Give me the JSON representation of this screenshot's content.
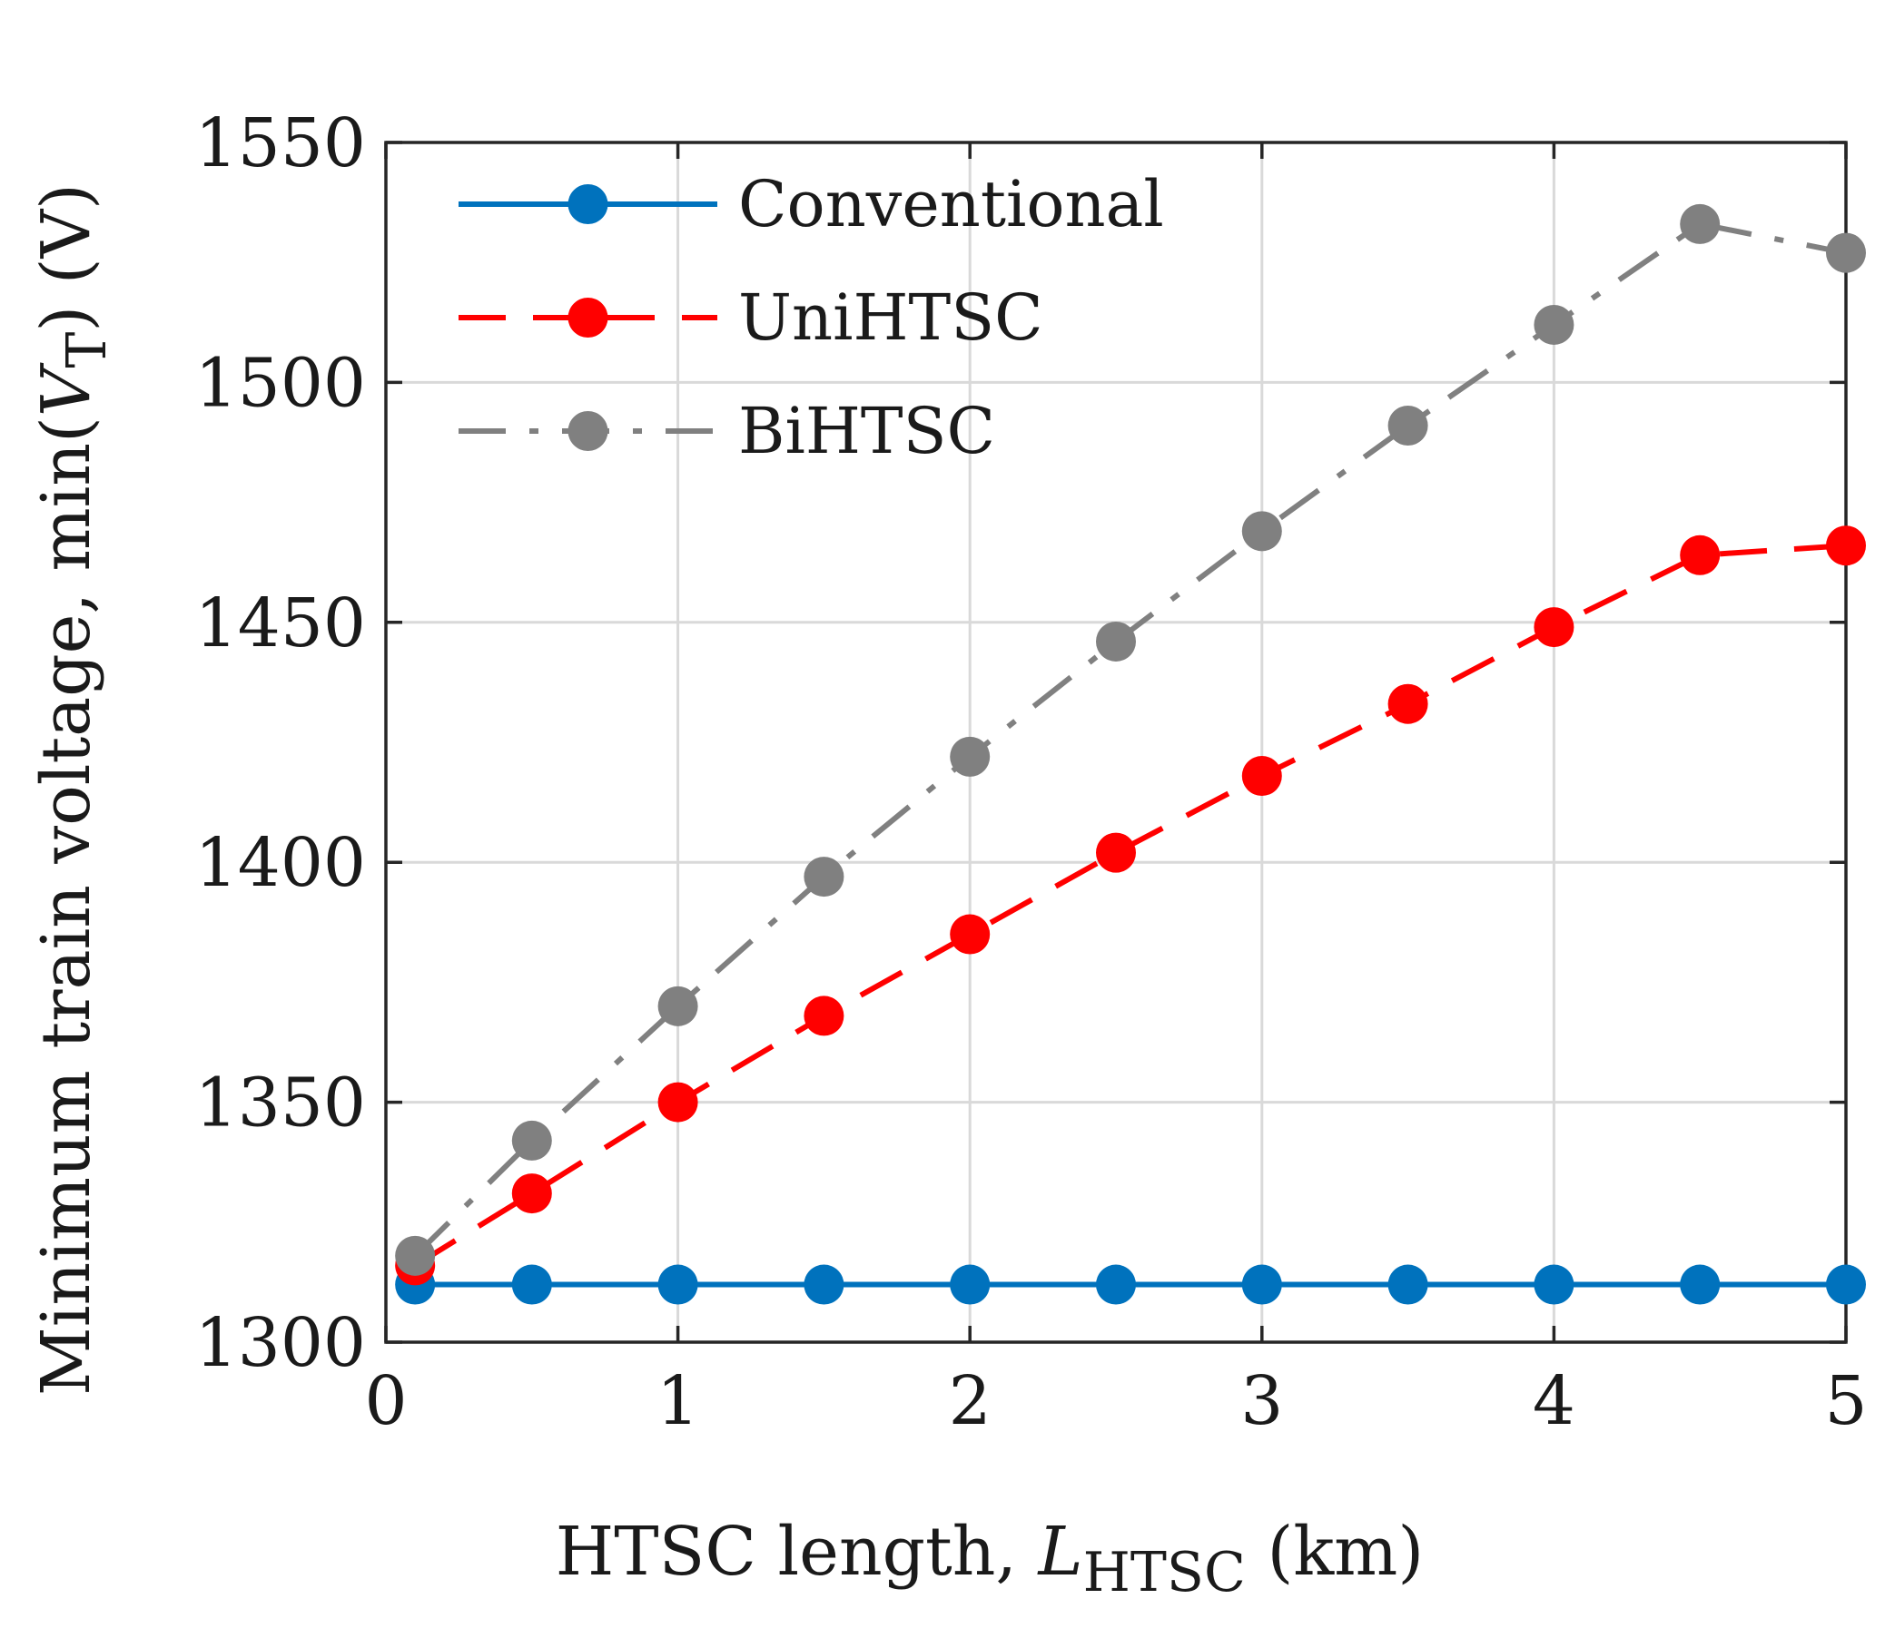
{
  "chart_data": {
    "type": "line",
    "title": "",
    "xlabel": {
      "main": "HTSC length, ",
      "var": "L",
      "sub": "HTSC",
      "unit": " (km)"
    },
    "ylabel": {
      "main": "Minimum train voltage, min(",
      "var": "V",
      "sub": "T",
      "unit": ") (V)"
    },
    "xlim": [
      0,
      5
    ],
    "ylim": [
      1300,
      1550
    ],
    "xticks": [
      0,
      1,
      2,
      3,
      4,
      5
    ],
    "xtick_labels": [
      "0",
      "1",
      "2",
      "3",
      "4",
      "5"
    ],
    "yticks": [
      1300,
      1350,
      1400,
      1450,
      1500,
      1550
    ],
    "ytick_labels": [
      "1300",
      "1350",
      "1400",
      "1450",
      "1500",
      "1550"
    ],
    "grid": true,
    "legend_position": "top-left",
    "x": [
      0.1,
      0.5,
      1,
      1.5,
      2,
      2.5,
      3,
      3.5,
      4,
      4.5,
      5
    ],
    "series": [
      {
        "name": "Conventional",
        "color": "#0072BD",
        "line_style": "solid",
        "values": [
          1312,
          1312,
          1312,
          1312,
          1312,
          1312,
          1312,
          1312,
          1312,
          1312,
          1312
        ]
      },
      {
        "name": "UniHTSC",
        "color": "#FF0000",
        "line_style": "dashed",
        "values": [
          1316,
          1331,
          1350,
          1368,
          1385,
          1402,
          1418,
          1433,
          1449,
          1464,
          1466
        ]
      },
      {
        "name": "BiHTSC",
        "color": "#808080",
        "line_style": "dash-dot",
        "values": [
          1318,
          1342,
          1370,
          1397,
          1422,
          1446,
          1469,
          1491,
          1512,
          1533,
          1527
        ]
      }
    ]
  }
}
